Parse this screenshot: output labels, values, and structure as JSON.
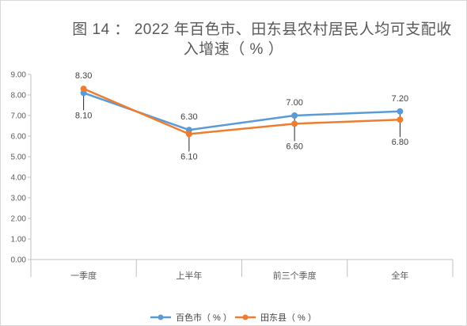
{
  "chart_data": {
    "type": "line",
    "title_line1": "图 14 ： 2022 年百色市、田东县农村居民人均可支配收",
    "title_line2": "入增速（ % ）",
    "categories": [
      "一季度",
      "上半年",
      "前三个季度",
      "全年"
    ],
    "ylim": [
      0,
      9
    ],
    "yticks": [
      "0.00",
      "1.00",
      "2.00",
      "3.00",
      "4.00",
      "5.00",
      "6.00",
      "7.00",
      "8.00",
      "9.00"
    ],
    "grid": false,
    "legend_position": "bottom",
    "series": [
      {
        "name": "百色市（ % ）",
        "color": "#5b9bd5",
        "values": [
          8.1,
          6.3,
          7.0,
          7.2
        ],
        "labels": [
          "8.10",
          "6.30",
          "7.00",
          "7.20"
        ]
      },
      {
        "name": "田东县（ % ）",
        "color": "#ed7d31",
        "values": [
          8.3,
          6.1,
          6.6,
          6.8
        ],
        "labels": [
          "8.30",
          "6.10",
          "6.60",
          "6.80"
        ]
      }
    ]
  }
}
